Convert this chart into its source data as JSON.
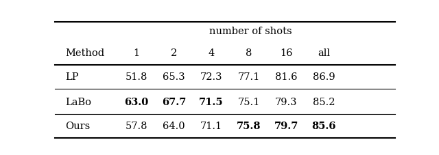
{
  "title_row": "number of shots",
  "col_header": [
    "1",
    "2",
    "4",
    "8",
    "16",
    "all"
  ],
  "row_labels": [
    "LP",
    "LaBo",
    "Ours"
  ],
  "data": [
    [
      51.8,
      65.3,
      72.3,
      77.1,
      81.6,
      86.9
    ],
    [
      63.0,
      67.7,
      71.5,
      75.1,
      79.3,
      85.2
    ],
    [
      57.8,
      64.0,
      71.1,
      75.8,
      79.7,
      85.6
    ]
  ],
  "bold": [
    [
      false,
      false,
      false,
      false,
      false,
      false
    ],
    [
      true,
      true,
      true,
      false,
      false,
      false
    ],
    [
      false,
      false,
      false,
      true,
      true,
      true
    ]
  ],
  "bg_color": "#ffffff",
  "text_color": "#000000",
  "line_color": "#000000"
}
